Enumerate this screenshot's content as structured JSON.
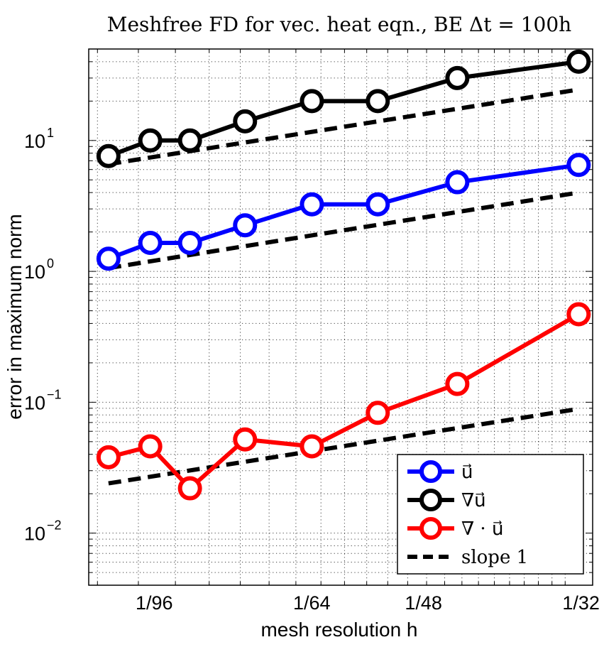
{
  "chart_data": {
    "type": "line",
    "title": "Meshfree FD for vec. heat eqn., BE Δt = 100h",
    "xlabel": "mesh resolution h",
    "ylabel": "error in maximum norm",
    "xscale": "log",
    "yscale": "log",
    "xlim": [
      0.0088,
      0.0322
    ],
    "ylim": [
      0.004,
      50
    ],
    "grid": true,
    "legend_position": "bottom-right",
    "x_ticks": [
      {
        "value": 0.0104167,
        "label": "1/96"
      },
      {
        "value": 0.015625,
        "label": "1/64"
      },
      {
        "value": 0.0208333,
        "label": "1/48"
      },
      {
        "value": 0.03125,
        "label": "1/32"
      }
    ],
    "y_ticks": [
      {
        "value": 0.01,
        "base": "10",
        "exp": "−2"
      },
      {
        "value": 0.1,
        "base": "10",
        "exp": "−1"
      },
      {
        "value": 1,
        "base": "10",
        "exp": "0"
      },
      {
        "value": 10,
        "base": "10",
        "exp": "1"
      }
    ],
    "x": [
      0.00926,
      0.01031,
      0.01142,
      0.01316,
      0.01563,
      0.01852,
      0.02273,
      0.03106
    ],
    "series": [
      {
        "name": "u",
        "legend_label": "u⃗",
        "color": "#0000ff",
        "marker": "circle",
        "dashed": false,
        "values": [
          1.25,
          1.65,
          1.65,
          2.25,
          3.25,
          3.25,
          4.8,
          6.5
        ]
      },
      {
        "name": "grad u",
        "legend_label": "∇u⃗",
        "color": "#000000",
        "marker": "circle",
        "dashed": false,
        "values": [
          7.6,
          10.0,
          10.0,
          14.0,
          20.0,
          20.0,
          30.0,
          40.0
        ]
      },
      {
        "name": "div u",
        "legend_label": "∇ · u⃗",
        "color": "#ff0000",
        "marker": "circle",
        "dashed": false,
        "values": [
          0.038,
          0.046,
          0.022,
          0.052,
          0.046,
          0.083,
          0.138,
          0.47
        ]
      },
      {
        "name": "slope 1",
        "legend_label": "slope 1",
        "color": "#000000",
        "marker": "none",
        "dashed": true,
        "segments": [
          {
            "x": [
              0.00926,
              0.03106
            ],
            "y": [
              6.6,
              24.5
            ]
          },
          {
            "x": [
              0.00926,
              0.03106
            ],
            "y": [
              1.06,
              4.0
            ]
          },
          {
            "x": [
              0.00926,
              0.03106
            ],
            "y": [
              0.024,
              0.089
            ]
          }
        ]
      }
    ]
  }
}
